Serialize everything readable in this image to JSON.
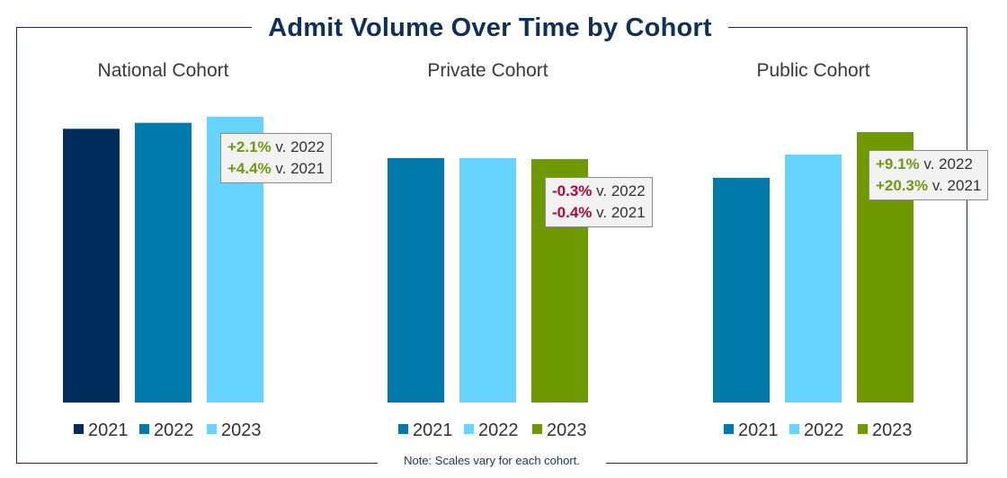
{
  "chart_data": {
    "type": "bar",
    "title": "Admit Volume Over Time by Cohort",
    "note": "Note: Scales vary for each cohort.",
    "panels": [
      {
        "name": "National Cohort",
        "categories": [
          "2021",
          "2022",
          "2023"
        ],
        "values": [
          0.958,
          0.979,
          1.0
        ],
        "colors": [
          "#002d5c",
          "#007aab",
          "#66d4ff"
        ],
        "callout": [
          {
            "change": "+2.1%",
            "versus": "v. 2022",
            "direction": "positive"
          },
          {
            "change": "+4.4%",
            "versus": "v. 2021",
            "direction": "positive"
          }
        ]
      },
      {
        "name": "Private Cohort",
        "categories": [
          "2021",
          "2022",
          "2023"
        ],
        "values": [
          1.0,
          1.0,
          0.996
        ],
        "colors": [
          "#007aab",
          "#66d4ff",
          "#6e9a00"
        ],
        "callout": [
          {
            "change": "-0.3%",
            "versus": "v. 2022",
            "direction": "negative"
          },
          {
            "change": "-0.4%",
            "versus": "v. 2021",
            "direction": "negative"
          }
        ]
      },
      {
        "name": "Public Cohort",
        "categories": [
          "2021",
          "2022",
          "2023"
        ],
        "values": [
          0.831,
          0.917,
          1.0
        ],
        "colors": [
          "#007aab",
          "#66d4ff",
          "#6e9a00"
        ],
        "callout": [
          {
            "change": "+9.1%",
            "versus": "v. 2022",
            "direction": "positive"
          },
          {
            "change": "+20.3%",
            "versus": "v. 2021",
            "direction": "positive"
          }
        ]
      }
    ]
  }
}
